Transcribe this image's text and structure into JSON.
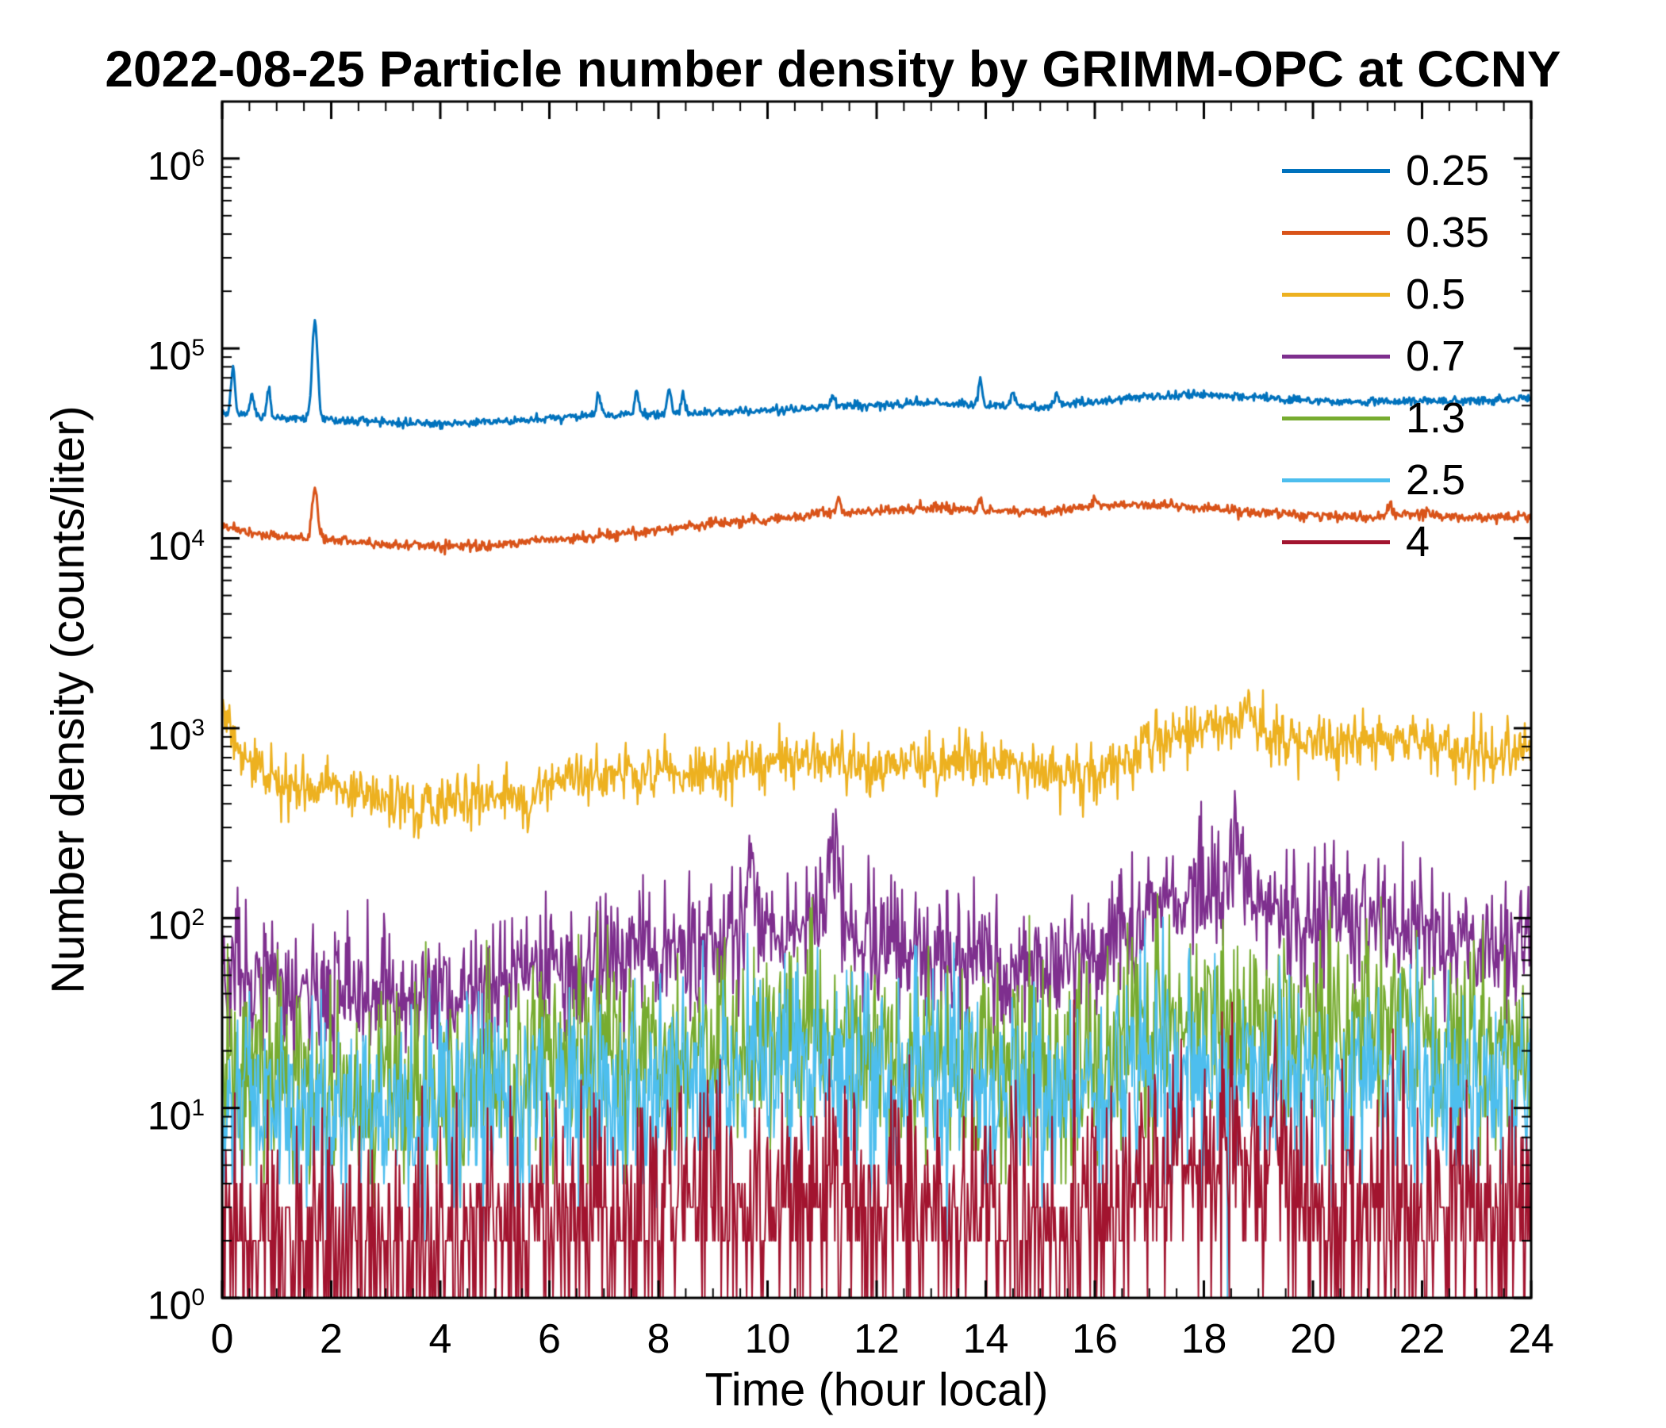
{
  "chart_data": {
    "type": "line",
    "title": "2022-08-25 Particle number density by GRIMM-OPC at CCNY",
    "xlabel": "Time (hour local)",
    "ylabel": "Number density (counts/liter)",
    "xlim": [
      0,
      24
    ],
    "xticks": [
      0,
      2,
      4,
      6,
      8,
      10,
      12,
      14,
      16,
      18,
      20,
      22,
      24
    ],
    "x_minor_step": 0.5,
    "y_scale": "log10",
    "ylim_exponents": [
      0,
      6.3
    ],
    "ytick_exponents": [
      0,
      1,
      2,
      3,
      4,
      5,
      6
    ],
    "grid": false,
    "legend_position": "northeast",
    "samples_per_hour": 60,
    "hours": [
      0,
      1,
      2,
      3,
      4,
      5,
      6,
      7,
      8,
      9,
      10,
      11,
      12,
      13,
      14,
      15,
      16,
      17,
      18,
      19,
      20,
      21,
      22,
      23,
      24
    ],
    "series": [
      {
        "name": "0.25",
        "color": "#0072BD",
        "line_width": 3,
        "noise_dex": 0.011,
        "integer_counts": false,
        "hourly_mean": [
          46000,
          43000,
          42000,
          41000,
          40000,
          41000,
          43000,
          44000,
          45000,
          46000,
          47000,
          49000,
          50000,
          52000,
          50000,
          49000,
          52000,
          56000,
          57000,
          55000,
          53000,
          52000,
          53000,
          53000,
          55000
        ],
        "spikes": [
          {
            "t": 0.2,
            "v": 80000
          },
          {
            "t": 0.55,
            "v": 58000
          },
          {
            "t": 0.85,
            "v": 62000
          },
          {
            "t": 1.7,
            "v": 140000,
            "w": 0.05
          },
          {
            "t": 6.9,
            "v": 57000
          },
          {
            "t": 7.6,
            "v": 60000
          },
          {
            "t": 8.2,
            "v": 62000
          },
          {
            "t": 8.45,
            "v": 58000
          },
          {
            "t": 11.2,
            "v": 57000
          },
          {
            "t": 13.9,
            "v": 68000
          },
          {
            "t": 14.5,
            "v": 60000
          },
          {
            "t": 15.3,
            "v": 58000
          }
        ]
      },
      {
        "name": "0.35",
        "color": "#D95319",
        "line_width": 3,
        "noise_dex": 0.013,
        "integer_counts": false,
        "hourly_mean": [
          11500,
          10200,
          9800,
          9300,
          9000,
          9300,
          9800,
          10300,
          11000,
          12000,
          12500,
          13500,
          14000,
          14500,
          14000,
          13800,
          14800,
          15200,
          14500,
          13800,
          13200,
          12800,
          13500,
          12800,
          13200
        ],
        "spikes": [
          {
            "t": 1.7,
            "v": 18500,
            "w": 0.05
          },
          {
            "t": 11.3,
            "v": 16500
          },
          {
            "t": 13.9,
            "v": 16000
          },
          {
            "t": 16.0,
            "v": 16500
          },
          {
            "t": 21.4,
            "v": 15500
          }
        ]
      },
      {
        "name": "0.5",
        "color": "#EDB120",
        "line_width": 2.4,
        "noise_dex": 0.07,
        "integer_counts": false,
        "hourly_mean": [
          950,
          520,
          470,
          430,
          420,
          450,
          510,
          560,
          580,
          600,
          640,
          700,
          620,
          650,
          670,
          600,
          560,
          820,
          1050,
          950,
          820,
          840,
          850,
          700,
          800
        ],
        "spikes": [
          {
            "t": 0.05,
            "v": 1300,
            "w": 0.06
          },
          {
            "t": 3.6,
            "v": 300,
            "w": 0.05
          },
          {
            "t": 5.6,
            "v": 290,
            "w": 0.05
          },
          {
            "t": 18.8,
            "v": 1450,
            "w": 0.08
          }
        ]
      },
      {
        "name": "0.7",
        "color": "#7E2F8E",
        "line_width": 2.2,
        "noise_dex": 0.17,
        "integer_counts": false,
        "hourly_mean": [
          55,
          45,
          40,
          38,
          40,
          46,
          55,
          62,
          68,
          75,
          80,
          92,
          72,
          65,
          60,
          56,
          62,
          105,
          145,
          115,
          95,
          100,
          92,
          72,
          78
        ],
        "spikes": [
          {
            "t": 9.7,
            "v": 190,
            "w": 0.08
          },
          {
            "t": 11.2,
            "v": 230,
            "w": 0.08
          },
          {
            "t": 18.6,
            "v": 240,
            "w": 0.1
          }
        ]
      },
      {
        "name": "1.3",
        "color": "#77AC30",
        "line_width": 2,
        "noise_dex": 0.27,
        "integer_counts": true,
        "hourly_mean": [
          18,
          14,
          12,
          12,
          13,
          14,
          16,
          18,
          20,
          22,
          23,
          26,
          21,
          18,
          16,
          15,
          18,
          26,
          32,
          28,
          27,
          30,
          26,
          21,
          20
        ],
        "spikes": []
      },
      {
        "name": "2.5",
        "color": "#4DBEEE",
        "line_width": 2,
        "noise_dex": 0.27,
        "integer_counts": true,
        "hourly_mean": [
          13,
          11,
          10,
          10,
          10,
          11,
          12,
          13,
          14,
          14,
          15,
          16,
          14,
          13,
          12,
          12,
          13,
          15,
          17,
          15,
          14,
          14,
          14,
          13,
          13
        ],
        "spikes": []
      },
      {
        "name": "4",
        "color": "#A2142F",
        "line_width": 2,
        "noise_dex": 0.32,
        "integer_counts": true,
        "hourly_mean": [
          2.6,
          2.2,
          2.0,
          2.0,
          2.0,
          2.2,
          2.4,
          2.6,
          2.8,
          3.0,
          3.0,
          3.4,
          3.0,
          2.8,
          2.6,
          2.5,
          2.8,
          4.0,
          5.2,
          4.2,
          3.2,
          3.0,
          3.0,
          2.8,
          2.8
        ],
        "spikes": [
          {
            "t": 11.2,
            "v": 11,
            "w": 0.06
          },
          {
            "t": 18.5,
            "v": 10,
            "w": 0.08
          },
          {
            "t": 19.3,
            "v": 9,
            "w": 0.06
          }
        ]
      }
    ]
  }
}
